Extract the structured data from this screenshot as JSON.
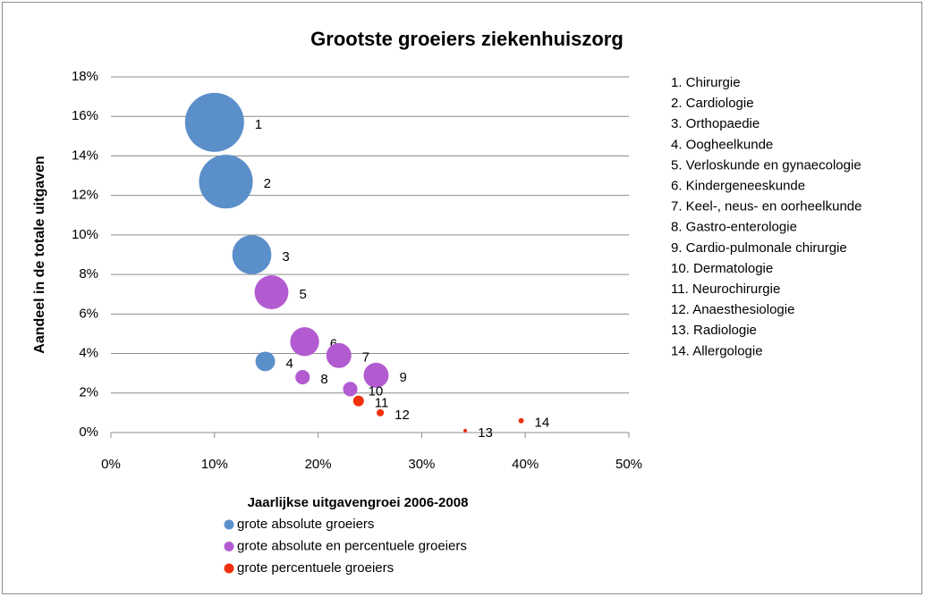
{
  "chart_data": {
    "type": "bubble",
    "title": "Grootste groeiers ziekenhuiszorg",
    "xlabel": "Jaarlijkse uitgavengroei 2006-2008",
    "ylabel": "Aandeel in de totale uitgaven",
    "xlim": [
      0,
      50
    ],
    "xticks": [
      {
        "value": 0,
        "label": "0%"
      },
      {
        "value": 10,
        "label": "10%"
      },
      {
        "value": 20,
        "label": "20%"
      },
      {
        "value": 30,
        "label": "30%"
      },
      {
        "value": 40,
        "label": "40%"
      },
      {
        "value": 50,
        "label": "50%"
      }
    ],
    "ylim": [
      0,
      18
    ],
    "yticks": [
      {
        "value": 0,
        "label": "0%"
      },
      {
        "value": 2,
        "label": "2%"
      },
      {
        "value": 4,
        "label": "4%"
      },
      {
        "value": 6,
        "label": "6%"
      },
      {
        "value": 8,
        "label": "8%"
      },
      {
        "value": 10,
        "label": "10%"
      },
      {
        "value": 12,
        "label": "12%"
      },
      {
        "value": 14,
        "label": "14%"
      },
      {
        "value": 16,
        "label": "16%"
      },
      {
        "value": 18,
        "label": "18%"
      }
    ],
    "grid": true,
    "legend": "bottom",
    "series": [
      {
        "name": "grote absolute groeiers",
        "color": "#5b8fca",
        "labels": [
          "1",
          "2",
          "3",
          "4"
        ],
        "x": [
          10.0,
          11.1,
          13.6,
          14.9
        ],
        "values": [
          15.7,
          12.7,
          9.0,
          3.6
        ],
        "sizes": [
          100,
          83,
          44,
          11
        ]
      },
      {
        "name": "grote absolute en percentuele groeiers",
        "color": "#b25bd1",
        "labels": [
          "5",
          "6",
          "7",
          "8",
          "9",
          "10"
        ],
        "x": [
          15.5,
          18.7,
          22.0,
          18.5,
          25.6,
          23.1
        ],
        "values": [
          7.1,
          4.6,
          3.9,
          2.8,
          2.9,
          2.2
        ],
        "sizes": [
          33,
          24,
          18,
          6,
          18,
          6
        ]
      },
      {
        "name": "grote percentuele groeiers",
        "color": "#f2300c",
        "labels": [
          "11",
          "12",
          "13",
          "14"
        ],
        "x": [
          23.9,
          26.0,
          34.2,
          39.6
        ],
        "values": [
          1.6,
          1.0,
          0.1,
          0.6
        ],
        "sizes": [
          3.3,
          1.5,
          0.4,
          0.8
        ]
      }
    ],
    "category_list": [
      "1. Chirurgie",
      "2. Cardiologie",
      "3. Orthopaedie",
      "4. Oogheelkunde",
      "5. Verloskunde en gynaecologie",
      "6. Kindergeneeskunde",
      "7. Keel-, neus- en oorheelkunde",
      "8. Gastro-enterologie",
      "9. Cardio-pulmonale chirurgie",
      "10. Dermatologie",
      "11. Neurochirurgie",
      "12. Anaesthesiologie",
      "13. Radiologie",
      "14. Allergologie"
    ]
  }
}
